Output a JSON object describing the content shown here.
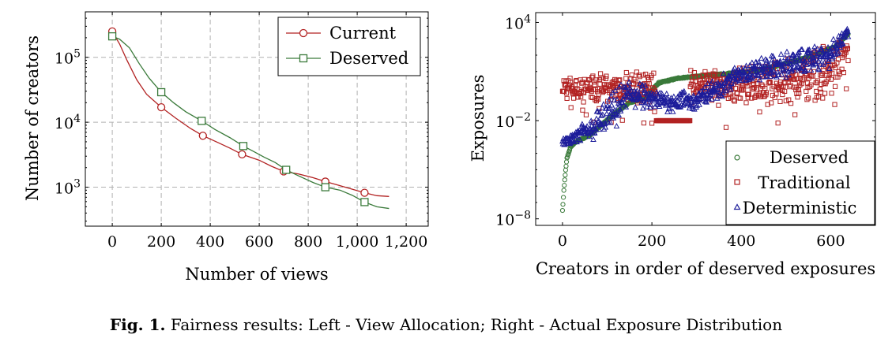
{
  "caption": {
    "label": "Fig. 1.",
    "text": "Fairness results: Left - View Allocation; Right - Actual Exposure Distribution"
  },
  "colors": {
    "red": "#b22222",
    "green": "#3a7a3a",
    "blue": "#1c1c9a"
  },
  "chart_data": [
    {
      "type": "line",
      "xlabel": "Number of views",
      "ylabel": "Number of creators",
      "xlim": [
        -110,
        1290
      ],
      "ylim_log10": [
        2.4,
        5.7
      ],
      "yscale": "log",
      "x_ticks": [
        0,
        200,
        400,
        600,
        800,
        1000,
        1200
      ],
      "x_tick_labels": [
        "0",
        "200",
        "400",
        "600",
        "800",
        "1,000",
        "1,200"
      ],
      "y_ticks_log10": [
        3,
        4,
        5
      ],
      "y_tick_bases": [
        "10",
        "10",
        "10"
      ],
      "y_tick_exps": [
        "3",
        "4",
        "5"
      ],
      "grid": true,
      "legend_position": "top-right",
      "series": [
        {
          "name": "Current",
          "color": "#b22222",
          "marker": "circle",
          "x": [
            0,
            30,
            60,
            100,
            140,
            200,
            260,
            320,
            370,
            430,
            480,
            530,
            600,
            650,
            700,
            760,
            820,
            870,
            920,
            980,
            1030,
            1080,
            1130
          ],
          "y": [
            250000,
            160000,
            90000,
            45000,
            27000,
            17000,
            11500,
            8000,
            6200,
            4900,
            4000,
            3200,
            2600,
            2100,
            1750,
            1600,
            1400,
            1220,
            1080,
            930,
            820,
            740,
            720
          ],
          "markers_x": [
            0,
            200,
            370,
            530,
            700,
            870,
            1030
          ]
        },
        {
          "name": "Deserved",
          "color": "#3a7a3a",
          "marker": "square",
          "x": [
            0,
            30,
            70,
            110,
            150,
            200,
            250,
            300,
            365,
            420,
            480,
            535,
            580,
            620,
            665,
            710,
            760,
            820,
            870,
            930,
            980,
            1030,
            1080,
            1130
          ],
          "y": [
            210000,
            190000,
            140000,
            80000,
            48000,
            29000,
            20000,
            14500,
            10500,
            7700,
            5800,
            4300,
            3500,
            2900,
            2400,
            1850,
            1500,
            1180,
            1000,
            900,
            750,
            590,
            500,
            470
          ],
          "markers_x": [
            0,
            200,
            365,
            535,
            710,
            870,
            1030
          ]
        }
      ]
    },
    {
      "type": "scatter",
      "xlabel": "Creators in order of deserved exposures",
      "ylabel": "Exposures",
      "xlim": [
        -60,
        700
      ],
      "ylim_log10": [
        -8.4,
        4.6
      ],
      "yscale": "log",
      "x_ticks": [
        0,
        200,
        400,
        600
      ],
      "x_tick_labels": [
        "0",
        "200",
        "400",
        "600"
      ],
      "y_ticks_log10": [
        -8,
        -2,
        4
      ],
      "y_tick_bases": [
        "10",
        "10",
        "10"
      ],
      "y_tick_exps": [
        "−8",
        "−2",
        "4"
      ],
      "grid": false,
      "legend_position": "bottom-right",
      "series": [
        {
          "name": "Deserved",
          "color": "#3a7a3a",
          "marker": "circle",
          "n": 640,
          "profile_log10": [
            [
              0,
              -7.5
            ],
            [
              3,
              -6.3
            ],
            [
              6,
              -5.3
            ],
            [
              10,
              -4.3
            ],
            [
              18,
              -3.6
            ],
            [
              30,
              -3.3
            ],
            [
              60,
              -2.9
            ],
            [
              90,
              -2.2
            ],
            [
              120,
              -1.5
            ],
            [
              150,
              -0.9
            ],
            [
              185,
              -0.6
            ],
            [
              215,
              0.3
            ],
            [
              260,
              0.6
            ],
            [
              300,
              0.7
            ],
            [
              340,
              0.8
            ],
            [
              380,
              0.9
            ],
            [
              420,
              1.0
            ],
            [
              460,
              1.2
            ],
            [
              500,
              1.5
            ],
            [
              540,
              1.8
            ],
            [
              580,
              2.2
            ],
            [
              610,
              2.5
            ],
            [
              639,
              3.3
            ]
          ]
        },
        {
          "name": "Traditional",
          "color": "#b22222",
          "marker": "square",
          "n": 640,
          "band_log10": [
            [
              0,
              0.0,
              0.5
            ],
            [
              200,
              0.0,
              0.7
            ],
            [
              400,
              0.2,
              0.8
            ],
            [
              500,
              0.4,
              1.0
            ],
            [
              600,
              0.9,
              1.3
            ],
            [
              639,
              2.4,
              1.0
            ]
          ],
          "flat_segment": {
            "x_range": [
              210,
              285
            ],
            "value_log10": -2.0
          }
        },
        {
          "name": "Deterministic",
          "color": "#1c1c9a",
          "marker": "triangle",
          "n": 640,
          "band_log10": [
            [
              0,
              -3.4,
              0.2
            ],
            [
              60,
              -2.6,
              0.6
            ],
            [
              120,
              -1.3,
              0.9
            ],
            [
              150,
              -0.3,
              0.8
            ],
            [
              200,
              -0.8,
              0.5
            ],
            [
              300,
              -0.8,
              0.5
            ],
            [
              400,
              0.9,
              0.5
            ],
            [
              500,
              1.4,
              0.6
            ],
            [
              600,
              2.0,
              0.6
            ],
            [
              639,
              3.4,
              0.3
            ]
          ]
        }
      ]
    }
  ]
}
